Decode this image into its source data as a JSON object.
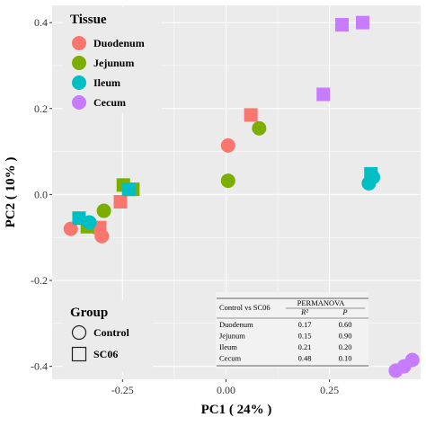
{
  "chart_data": {
    "type": "scatter",
    "xlabel": "PC1 ( 24% )",
    "ylabel": "PC2 ( 10% )",
    "xlim": [
      -0.42,
      0.47
    ],
    "ylim": [
      -0.43,
      0.44
    ],
    "xticks": [
      -0.25,
      0.0,
      0.25
    ],
    "xtick_labels": [
      "-0.25",
      "0.00",
      "0.25"
    ],
    "yticks": [
      -0.4,
      -0.2,
      0.0,
      0.2,
      0.4
    ],
    "ytick_labels": [
      "-0.4",
      "-0.2",
      "0.0",
      "0.2",
      "0.4"
    ],
    "grid": true,
    "panel_background": "#ebebeb",
    "legend_tissue": {
      "title": "Tissue",
      "position": "top-left",
      "items": [
        {
          "label": "Duodenum",
          "color": "#f8766d"
        },
        {
          "label": "Jejunum",
          "color": "#7cae00"
        },
        {
          "label": "Ileum",
          "color": "#00bfc4"
        },
        {
          "label": "Cecum",
          "color": "#c77cff"
        }
      ]
    },
    "legend_group": {
      "title": "Group",
      "position": "bottom-left",
      "items": [
        {
          "label": "Control",
          "shape": "circle"
        },
        {
          "label": "SC06",
          "shape": "square"
        }
      ]
    },
    "series": [
      {
        "name": "Duodenum",
        "group": "Control",
        "color": "#f8766d",
        "shape": "circle",
        "x": [
          -0.375,
          -0.3,
          0.005
        ],
        "y": [
          -0.08,
          -0.097,
          0.114
        ]
      },
      {
        "name": "Duodenum",
        "group": "SC06",
        "color": "#f8766d",
        "shape": "square",
        "x": [
          -0.305,
          -0.255,
          0.06
        ],
        "y": [
          -0.077,
          -0.017,
          0.185
        ]
      },
      {
        "name": "Jejunum",
        "group": "Control",
        "color": "#7cae00",
        "shape": "circle",
        "x": [
          -0.295,
          0.005,
          0.08
        ],
        "y": [
          -0.038,
          0.032,
          0.154
        ]
      },
      {
        "name": "Jejunum",
        "group": "SC06",
        "color": "#7cae00",
        "shape": "square",
        "x": [
          -0.335,
          -0.248,
          -0.225
        ],
        "y": [
          -0.075,
          0.022,
          0.012
        ]
      },
      {
        "name": "Ileum",
        "group": "Control",
        "color": "#00bfc4",
        "shape": "circle",
        "x": [
          -0.33,
          0.345,
          0.355
        ],
        "y": [
          -0.065,
          0.026,
          0.04
        ]
      },
      {
        "name": "Ileum",
        "group": "SC06",
        "color": "#00bfc4",
        "shape": "square",
        "x": [
          -0.355,
          -0.235,
          0.35
        ],
        "y": [
          -0.055,
          0.012,
          0.048
        ]
      },
      {
        "name": "Cecum",
        "group": "Control",
        "color": "#c77cff",
        "shape": "circle",
        "x": [
          0.41,
          0.43,
          0.45
        ],
        "y": [
          -0.41,
          -0.4,
          -0.385
        ]
      },
      {
        "name": "Cecum",
        "group": "SC06",
        "color": "#c77cff",
        "shape": "square",
        "x": [
          0.235,
          0.28,
          0.33
        ],
        "y": [
          0.233,
          0.395,
          0.4
        ]
      }
    ],
    "permanova": {
      "header_left": "Control vs SC06",
      "header_right": "PERMANOVA",
      "col_r2": "R²",
      "col_p": "P",
      "rows": [
        {
          "tissue": "Duodenum",
          "r2": "0.17",
          "p": "0.60"
        },
        {
          "tissue": "Jejunum",
          "r2": "0.15",
          "p": "0.90"
        },
        {
          "tissue": "Ileum",
          "r2": "0.21",
          "p": "0.20"
        },
        {
          "tissue": "Cecum",
          "r2": "0.48",
          "p": "0.10"
        }
      ]
    }
  }
}
